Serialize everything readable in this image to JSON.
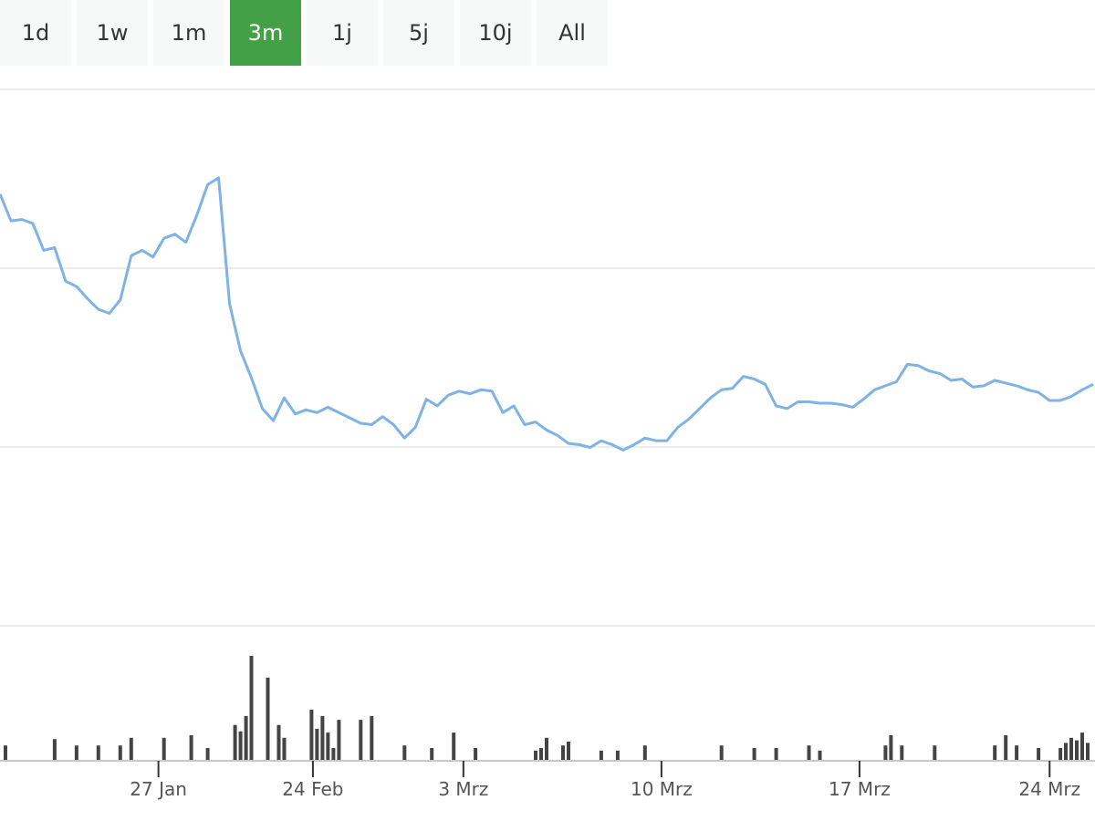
{
  "range_buttons": [
    {
      "label": "1d",
      "active": false
    },
    {
      "label": "1w",
      "active": false
    },
    {
      "label": "1m",
      "active": false
    },
    {
      "label": "3m",
      "active": true
    },
    {
      "label": "1j",
      "active": false
    },
    {
      "label": "5j",
      "active": false
    },
    {
      "label": "10j",
      "active": false
    },
    {
      "label": "All",
      "active": false
    }
  ],
  "colors": {
    "price_line": "#7fb2e5",
    "volume_bar": "#444444",
    "active_button": "#43a047",
    "button_bg": "#f7f8f8",
    "grid": "#e6e6e6",
    "axis": "#c8c8c8",
    "tick_label": "#555555"
  },
  "chart_data": [
    {
      "type": "line",
      "grid": true,
      "ylim": [
        0,
        4
      ],
      "x": [
        0,
        2,
        4,
        6,
        8,
        10,
        12,
        14,
        16,
        18,
        20,
        22,
        24,
        26,
        28,
        30,
        32,
        34,
        36,
        38,
        40,
        42,
        44,
        46,
        48,
        50,
        52,
        54,
        56,
        58,
        60,
        62,
        64,
        66,
        68,
        70,
        72,
        74,
        76,
        78,
        80,
        82,
        84,
        86,
        88,
        90,
        92,
        94,
        96,
        98,
        100,
        102,
        104,
        106,
        108,
        110,
        112,
        114,
        116,
        118,
        120,
        122,
        124,
        126,
        128,
        130,
        132,
        134,
        136,
        138,
        140,
        142,
        144,
        146,
        148,
        150,
        152,
        154,
        156,
        158,
        160,
        162,
        164,
        166,
        168,
        170,
        172,
        174,
        176,
        178,
        180,
        182,
        184,
        186,
        188,
        190,
        192,
        194,
        196,
        198,
        200
      ],
      "values": [
        3.22,
        3.02,
        3.03,
        3.0,
        2.8,
        2.82,
        2.57,
        2.53,
        2.44,
        2.36,
        2.33,
        2.43,
        2.76,
        2.8,
        2.75,
        2.89,
        2.92,
        2.86,
        3.06,
        3.29,
        3.34,
        2.4,
        2.05,
        1.85,
        1.62,
        1.53,
        1.7,
        1.58,
        1.61,
        1.59,
        1.63,
        1.59,
        1.55,
        1.51,
        1.5,
        1.56,
        1.5,
        1.4,
        1.48,
        1.69,
        1.64,
        1.72,
        1.75,
        1.73,
        1.76,
        1.75,
        1.59,
        1.64,
        1.5,
        1.52,
        1.46,
        1.42,
        1.36,
        1.35,
        1.33,
        1.38,
        1.35,
        1.31,
        1.35,
        1.4,
        1.38,
        1.38,
        1.48,
        1.54,
        1.62,
        1.7,
        1.76,
        1.77,
        1.86,
        1.84,
        1.8,
        1.64,
        1.62,
        1.67,
        1.67,
        1.66,
        1.66,
        1.65,
        1.63,
        1.69,
        1.76,
        1.79,
        1.82,
        1.95,
        1.94,
        1.9,
        1.88,
        1.83,
        1.84,
        1.78,
        1.79,
        1.83,
        1.81,
        1.79,
        1.76,
        1.74,
        1.68,
        1.68,
        1.71,
        1.76,
        1.8
      ]
    },
    {
      "type": "bar",
      "grid": false,
      "x": [
        1,
        10,
        14,
        18,
        22,
        24,
        30,
        35,
        38,
        43,
        44,
        45,
        46,
        49,
        51,
        52,
        57,
        58,
        59,
        60,
        61,
        62,
        66,
        68,
        74,
        79,
        83,
        87,
        98,
        99,
        100,
        103,
        104,
        110,
        113,
        118,
        132,
        138,
        142,
        148,
        150,
        162,
        163,
        165,
        171,
        182,
        184,
        186,
        190,
        194,
        195,
        196,
        197,
        198,
        199
      ],
      "values": [
        0.12,
        0.17,
        0.12,
        0.12,
        0.12,
        0.18,
        0.18,
        0.2,
        0.1,
        0.28,
        0.23,
        0.35,
        0.82,
        0.65,
        0.28,
        0.18,
        0.4,
        0.25,
        0.35,
        0.22,
        0.1,
        0.32,
        0.32,
        0.35,
        0.12,
        0.1,
        0.22,
        0.1,
        0.08,
        0.1,
        0.18,
        0.12,
        0.15,
        0.08,
        0.08,
        0.12,
        0.12,
        0.1,
        0.1,
        0.12,
        0.08,
        0.12,
        0.2,
        0.12,
        0.12,
        0.12,
        0.2,
        0.12,
        0.1,
        0.1,
        0.14,
        0.18,
        0.16,
        0.22,
        0.14
      ]
    }
  ],
  "x_axis": {
    "ticks": [
      {
        "label": "27 Jan",
        "x": 40
      },
      {
        "label": "24 Feb",
        "x": 79
      },
      {
        "label": "3 Mrz",
        "x": 117
      },
      {
        "label": "10 Mrz",
        "x": 167
      },
      {
        "label": "17 Mrz",
        "x": 217
      },
      {
        "label": "24 Mrz",
        "x": 265
      }
    ]
  }
}
